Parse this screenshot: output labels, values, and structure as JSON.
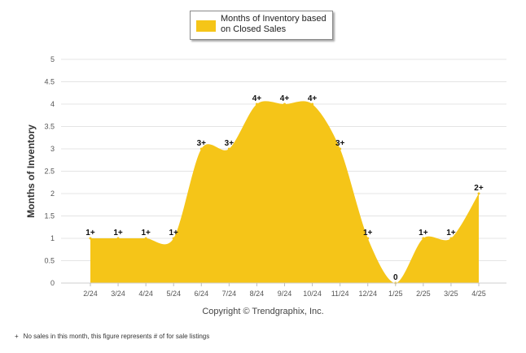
{
  "legend": {
    "label": "Months of Inventory based on Closed Sales",
    "color": "#f5c518"
  },
  "chart_data": {
    "type": "area",
    "xlabel": "",
    "ylabel": "Months of Inventory",
    "ylim": [
      0,
      5
    ],
    "yticks": [
      "0",
      "0.5",
      "1",
      "1.5",
      "2",
      "2.5",
      "3",
      "3.5",
      "4",
      "4.5",
      "5"
    ],
    "grid": true,
    "legend_position": "top-center",
    "categories": [
      "2/24",
      "3/24",
      "4/24",
      "5/24",
      "6/24",
      "7/24",
      "8/24",
      "9/24",
      "10/24",
      "11/24",
      "12/24",
      "1/25",
      "2/25",
      "3/25",
      "4/25"
    ],
    "series": [
      {
        "name": "Months of Inventory based on Closed Sales",
        "color": "#f5c518",
        "values": [
          1,
          1,
          1,
          1,
          3,
          3,
          4,
          4,
          4,
          3,
          1,
          0,
          1,
          1,
          2
        ],
        "data_labels": [
          "1+",
          "1+",
          "1+",
          "1+",
          "3+",
          "3+",
          "4+",
          "4+",
          "4+",
          "3+",
          "1+",
          "0",
          "1+",
          "1+",
          "2+"
        ]
      }
    ]
  },
  "copyright": "Copyright © Trendgraphix, Inc.",
  "footnote": {
    "mark": "+",
    "text": "No sales in this month, this figure represents # of for sale listings"
  }
}
